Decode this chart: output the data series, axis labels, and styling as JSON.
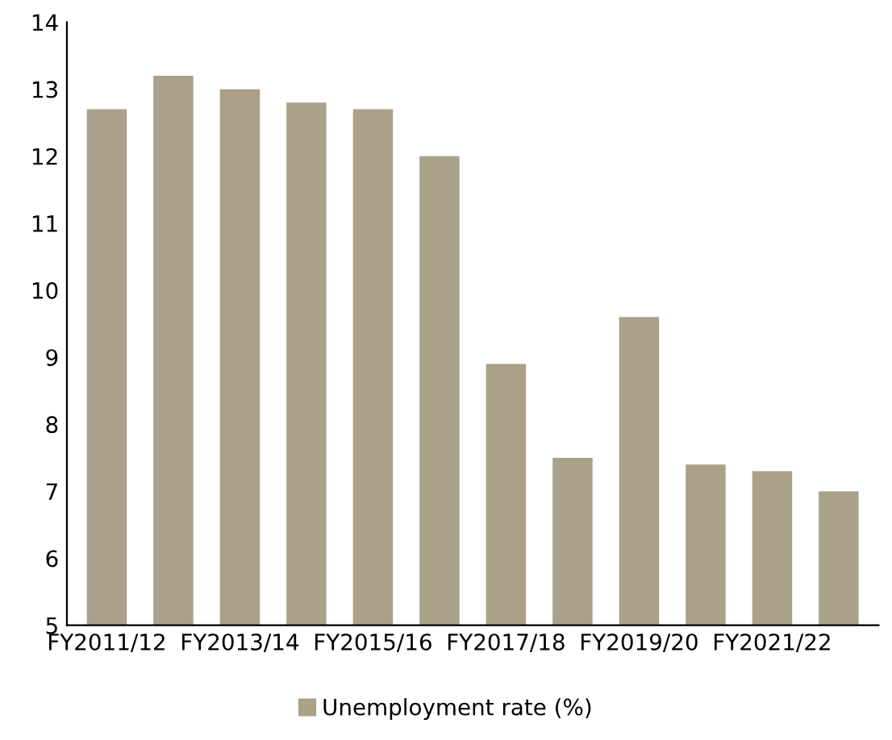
{
  "chart_data": {
    "type": "bar",
    "categories": [
      "FY2011/12",
      null,
      "FY2013/14",
      null,
      "FY2015/16",
      null,
      "FY2017/18",
      null,
      "FY2019/20",
      null,
      "FY2021/22",
      null
    ],
    "series": [
      {
        "name": "Unemployment rate (%)",
        "color": "#aba088",
        "values": [
          12.7,
          13.2,
          13.0,
          12.8,
          12.7,
          12.0,
          8.9,
          7.5,
          9.6,
          7.4,
          7.3,
          7.0
        ]
      }
    ],
    "ylim": [
      5,
      14
    ],
    "yticks": [
      5,
      6,
      7,
      8,
      9,
      10,
      11,
      12,
      13,
      14
    ],
    "grid": false,
    "legend": "bottom"
  }
}
